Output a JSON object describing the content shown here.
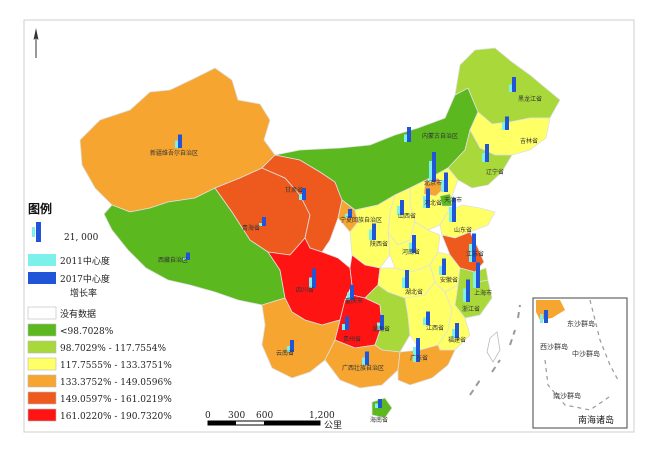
{
  "colors": {
    "no_data": "#ffffff",
    "c1": "#5bb81f",
    "c2": "#a8d83a",
    "c3": "#ffff66",
    "c4": "#f5a530",
    "c5": "#ee5a1e",
    "c6": "#ff1414",
    "bar2011": "#7ef0ec",
    "bar2017": "#1f55d6"
  },
  "legend": {
    "title": "图例",
    "bar_value": "21, 000",
    "series": [
      {
        "label": "2011中心度",
        "color": "#7ef0ec"
      },
      {
        "label": "2017中心度",
        "color": "#1f55d6"
      }
    ],
    "growth_title": "增长率",
    "classes": [
      {
        "label": "没有数据",
        "color": "#ffffff"
      },
      {
        "label": "<98.7028%",
        "color": "#5bb81f"
      },
      {
        "label": "98.7029% - 117.7554%",
        "color": "#a8d83a"
      },
      {
        "label": "117.7555% - 133.3751%",
        "color": "#ffff66"
      },
      {
        "label": "133.3752% - 149.0596%",
        "color": "#f5a530"
      },
      {
        "label": "149.0597% - 161.0219%",
        "color": "#ee5a1e"
      },
      {
        "label": "161.0220% - 190.7320%",
        "color": "#ff1414"
      }
    ]
  },
  "scale_bar": {
    "ticks": [
      "0",
      "300",
      "600",
      "1,200"
    ],
    "unit": "公里"
  },
  "inset": {
    "title": "南海诸岛",
    "islands": [
      "东沙群岛",
      "西沙群岛",
      "中沙群岛",
      "南沙群岛"
    ]
  },
  "provinces": [
    {
      "name": "新疆维吾尔自治区",
      "class": 4,
      "v2011": 5,
      "v2017": 9
    },
    {
      "name": "西藏自治区",
      "class": 1,
      "v2011": 2,
      "v2017": 5
    },
    {
      "name": "青海省",
      "class": 5,
      "v2011": 2,
      "v2017": 6
    },
    {
      "name": "甘肃省",
      "class": 5,
      "v2011": 4,
      "v2017": 8
    },
    {
      "name": "宁夏回族自治区",
      "class": 4,
      "v2011": 3,
      "v2017": 6
    },
    {
      "name": "内蒙古自治区",
      "class": 1,
      "v2011": 5,
      "v2017": 10
    },
    {
      "name": "黑龙江省",
      "class": 2,
      "v2011": 5,
      "v2017": 10
    },
    {
      "name": "吉林省",
      "class": 3,
      "v2011": 5,
      "v2017": 9
    },
    {
      "name": "辽宁省",
      "class": 2,
      "v2011": 6,
      "v2017": 12
    },
    {
      "name": "北京市",
      "class": 4,
      "v2011": 14,
      "v2017": 20
    },
    {
      "name": "天津市",
      "class": 1,
      "v2011": 8,
      "v2017": 13
    },
    {
      "name": "河北省",
      "class": 3,
      "v2011": 8,
      "v2017": 13
    },
    {
      "name": "山西省",
      "class": 3,
      "v2011": 6,
      "v2017": 10
    },
    {
      "name": "山东省",
      "class": 3,
      "v2011": 10,
      "v2017": 16
    },
    {
      "name": "陕西省",
      "class": 3,
      "v2011": 7,
      "v2017": 11
    },
    {
      "name": "河南省",
      "class": 3,
      "v2011": 7,
      "v2017": 12
    },
    {
      "name": "江苏省",
      "class": 5,
      "v2011": 12,
      "v2017": 19
    },
    {
      "name": "安徽省",
      "class": 3,
      "v2011": 6,
      "v2017": 11
    },
    {
      "name": "上海市",
      "class": 2,
      "v2011": 11,
      "v2017": 17
    },
    {
      "name": "浙江省",
      "class": 2,
      "v2011": 9,
      "v2017": 15
    },
    {
      "name": "四川省",
      "class": 6,
      "v2011": 7,
      "v2017": 13
    },
    {
      "name": "重庆市",
      "class": 6,
      "v2011": 5,
      "v2017": 10
    },
    {
      "name": "湖北省",
      "class": 3,
      "v2011": 7,
      "v2017": 12
    },
    {
      "name": "湖南省",
      "class": 2,
      "v2011": 5,
      "v2017": 10
    },
    {
      "name": "江西省",
      "class": 3,
      "v2011": 5,
      "v2017": 9
    },
    {
      "name": "福建省",
      "class": 3,
      "v2011": 6,
      "v2017": 10
    },
    {
      "name": "贵州省",
      "class": 6,
      "v2011": 4,
      "v2017": 9
    },
    {
      "name": "云南省",
      "class": 4,
      "v2011": 4,
      "v2017": 8
    },
    {
      "name": "广西壮族自治区",
      "class": 4,
      "v2011": 5,
      "v2017": 9
    },
    {
      "name": "广东省",
      "class": 4,
      "v2011": 10,
      "v2017": 16
    },
    {
      "name": "海南省",
      "class": 1,
      "v2011": 3,
      "v2017": 6
    }
  ]
}
